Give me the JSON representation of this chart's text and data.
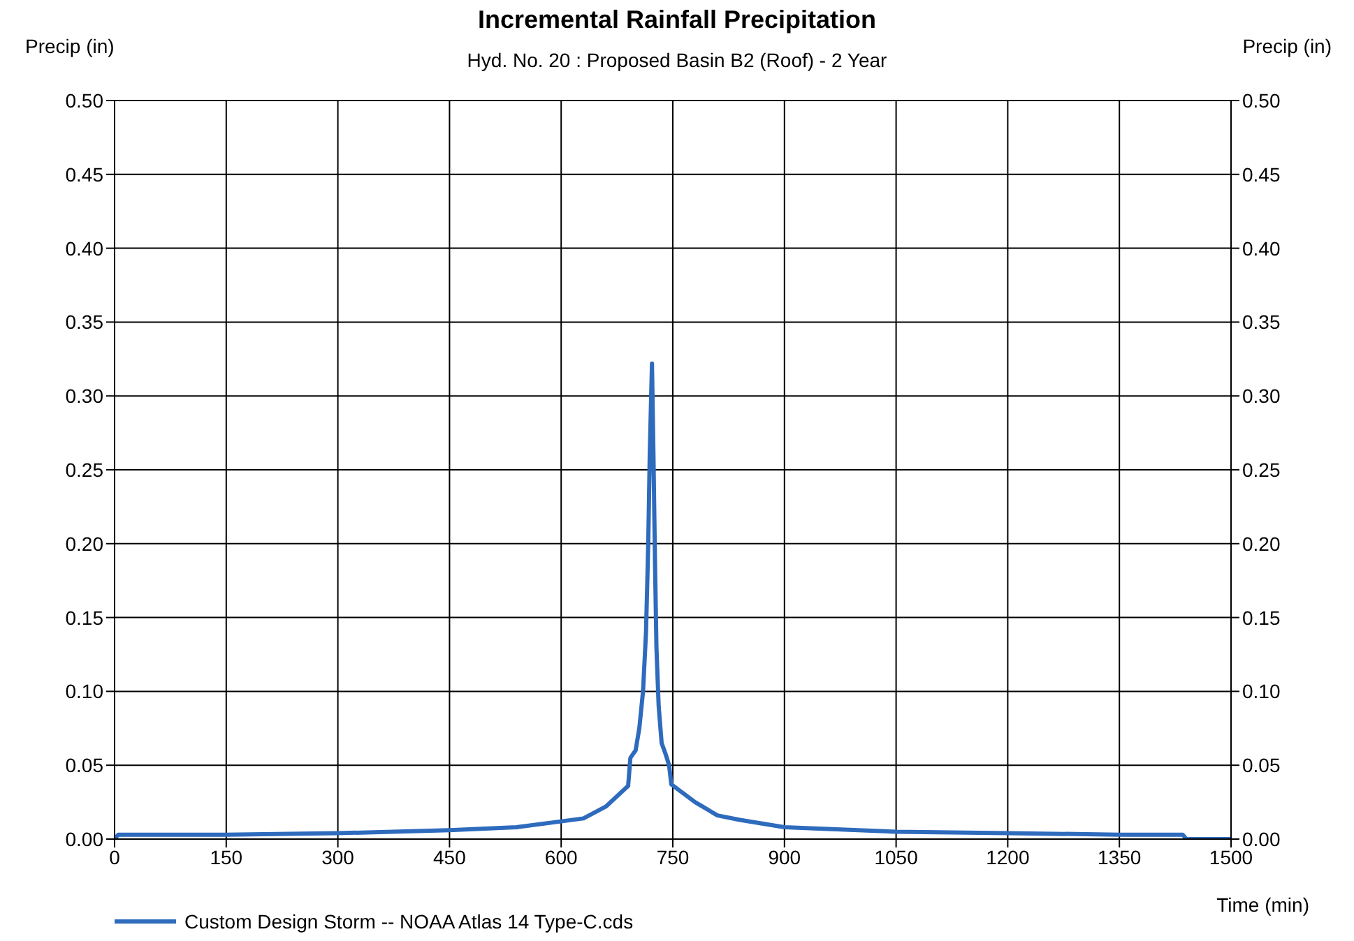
{
  "chart_data": {
    "type": "line",
    "title": "Incremental Rainfall Precipitation",
    "subtitle": "Hyd. No. 20 : Proposed Basin B2 (Roof) - 2 Year",
    "ylabel": "Precip (in)",
    "y2label": "Precip (in)",
    "xlabel": "Time (min)",
    "x": [
      0,
      5,
      150,
      300,
      450,
      540,
      600,
      630,
      660,
      690,
      693,
      700,
      705,
      710,
      714,
      717,
      719,
      722,
      724,
      726,
      728,
      731,
      735,
      740,
      745,
      748,
      780,
      810,
      840,
      900,
      1050,
      1200,
      1350,
      1435,
      1440,
      1500
    ],
    "series": [
      {
        "name": "Custom Design Storm -- NOAA Atlas 14 Type-C.cds",
        "color": "#2e6bbd",
        "values": [
          0,
          0.003,
          0.003,
          0.004,
          0.006,
          0.008,
          0.012,
          0.014,
          0.022,
          0.036,
          0.055,
          0.06,
          0.075,
          0.1,
          0.14,
          0.2,
          0.26,
          0.322,
          0.26,
          0.19,
          0.13,
          0.09,
          0.065,
          0.058,
          0.05,
          0.037,
          0.025,
          0.016,
          0.013,
          0.008,
          0.005,
          0.004,
          0.003,
          0.003,
          0,
          0
        ]
      }
    ],
    "xlim": [
      0,
      1500
    ],
    "xticks": [
      0,
      150,
      300,
      450,
      600,
      750,
      900,
      1050,
      1200,
      1350,
      1500
    ],
    "ylim": [
      0,
      0.5
    ],
    "yticks": [
      {
        "value": 0,
        "label": "0.00"
      },
      0.05,
      {
        "value": 0.1,
        "label": "0.10"
      },
      0.15,
      {
        "value": 0.2,
        "label": "0.20"
      },
      0.25,
      {
        "value": 0.3,
        "label": "0.30"
      },
      0.35,
      {
        "value": 0.4,
        "label": "0.40"
      },
      0.45,
      {
        "value": 0.5,
        "label": "0.50"
      }
    ],
    "y2lim": [
      0,
      0.5
    ],
    "y2ticks": [
      {
        "value": 0,
        "label": "0.00"
      },
      0.05,
      {
        "value": 0.1,
        "label": "0.10"
      },
      0.15,
      {
        "value": 0.2,
        "label": "0.20"
      },
      0.25,
      {
        "value": 0.3,
        "label": "0.30"
      },
      0.35,
      {
        "value": 0.4,
        "label": "0.40"
      },
      0.45,
      {
        "value": 0.5,
        "label": "0.50"
      }
    ],
    "grid": true,
    "legend": "bottom left",
    "marker": "none",
    "line_style": "solid"
  }
}
